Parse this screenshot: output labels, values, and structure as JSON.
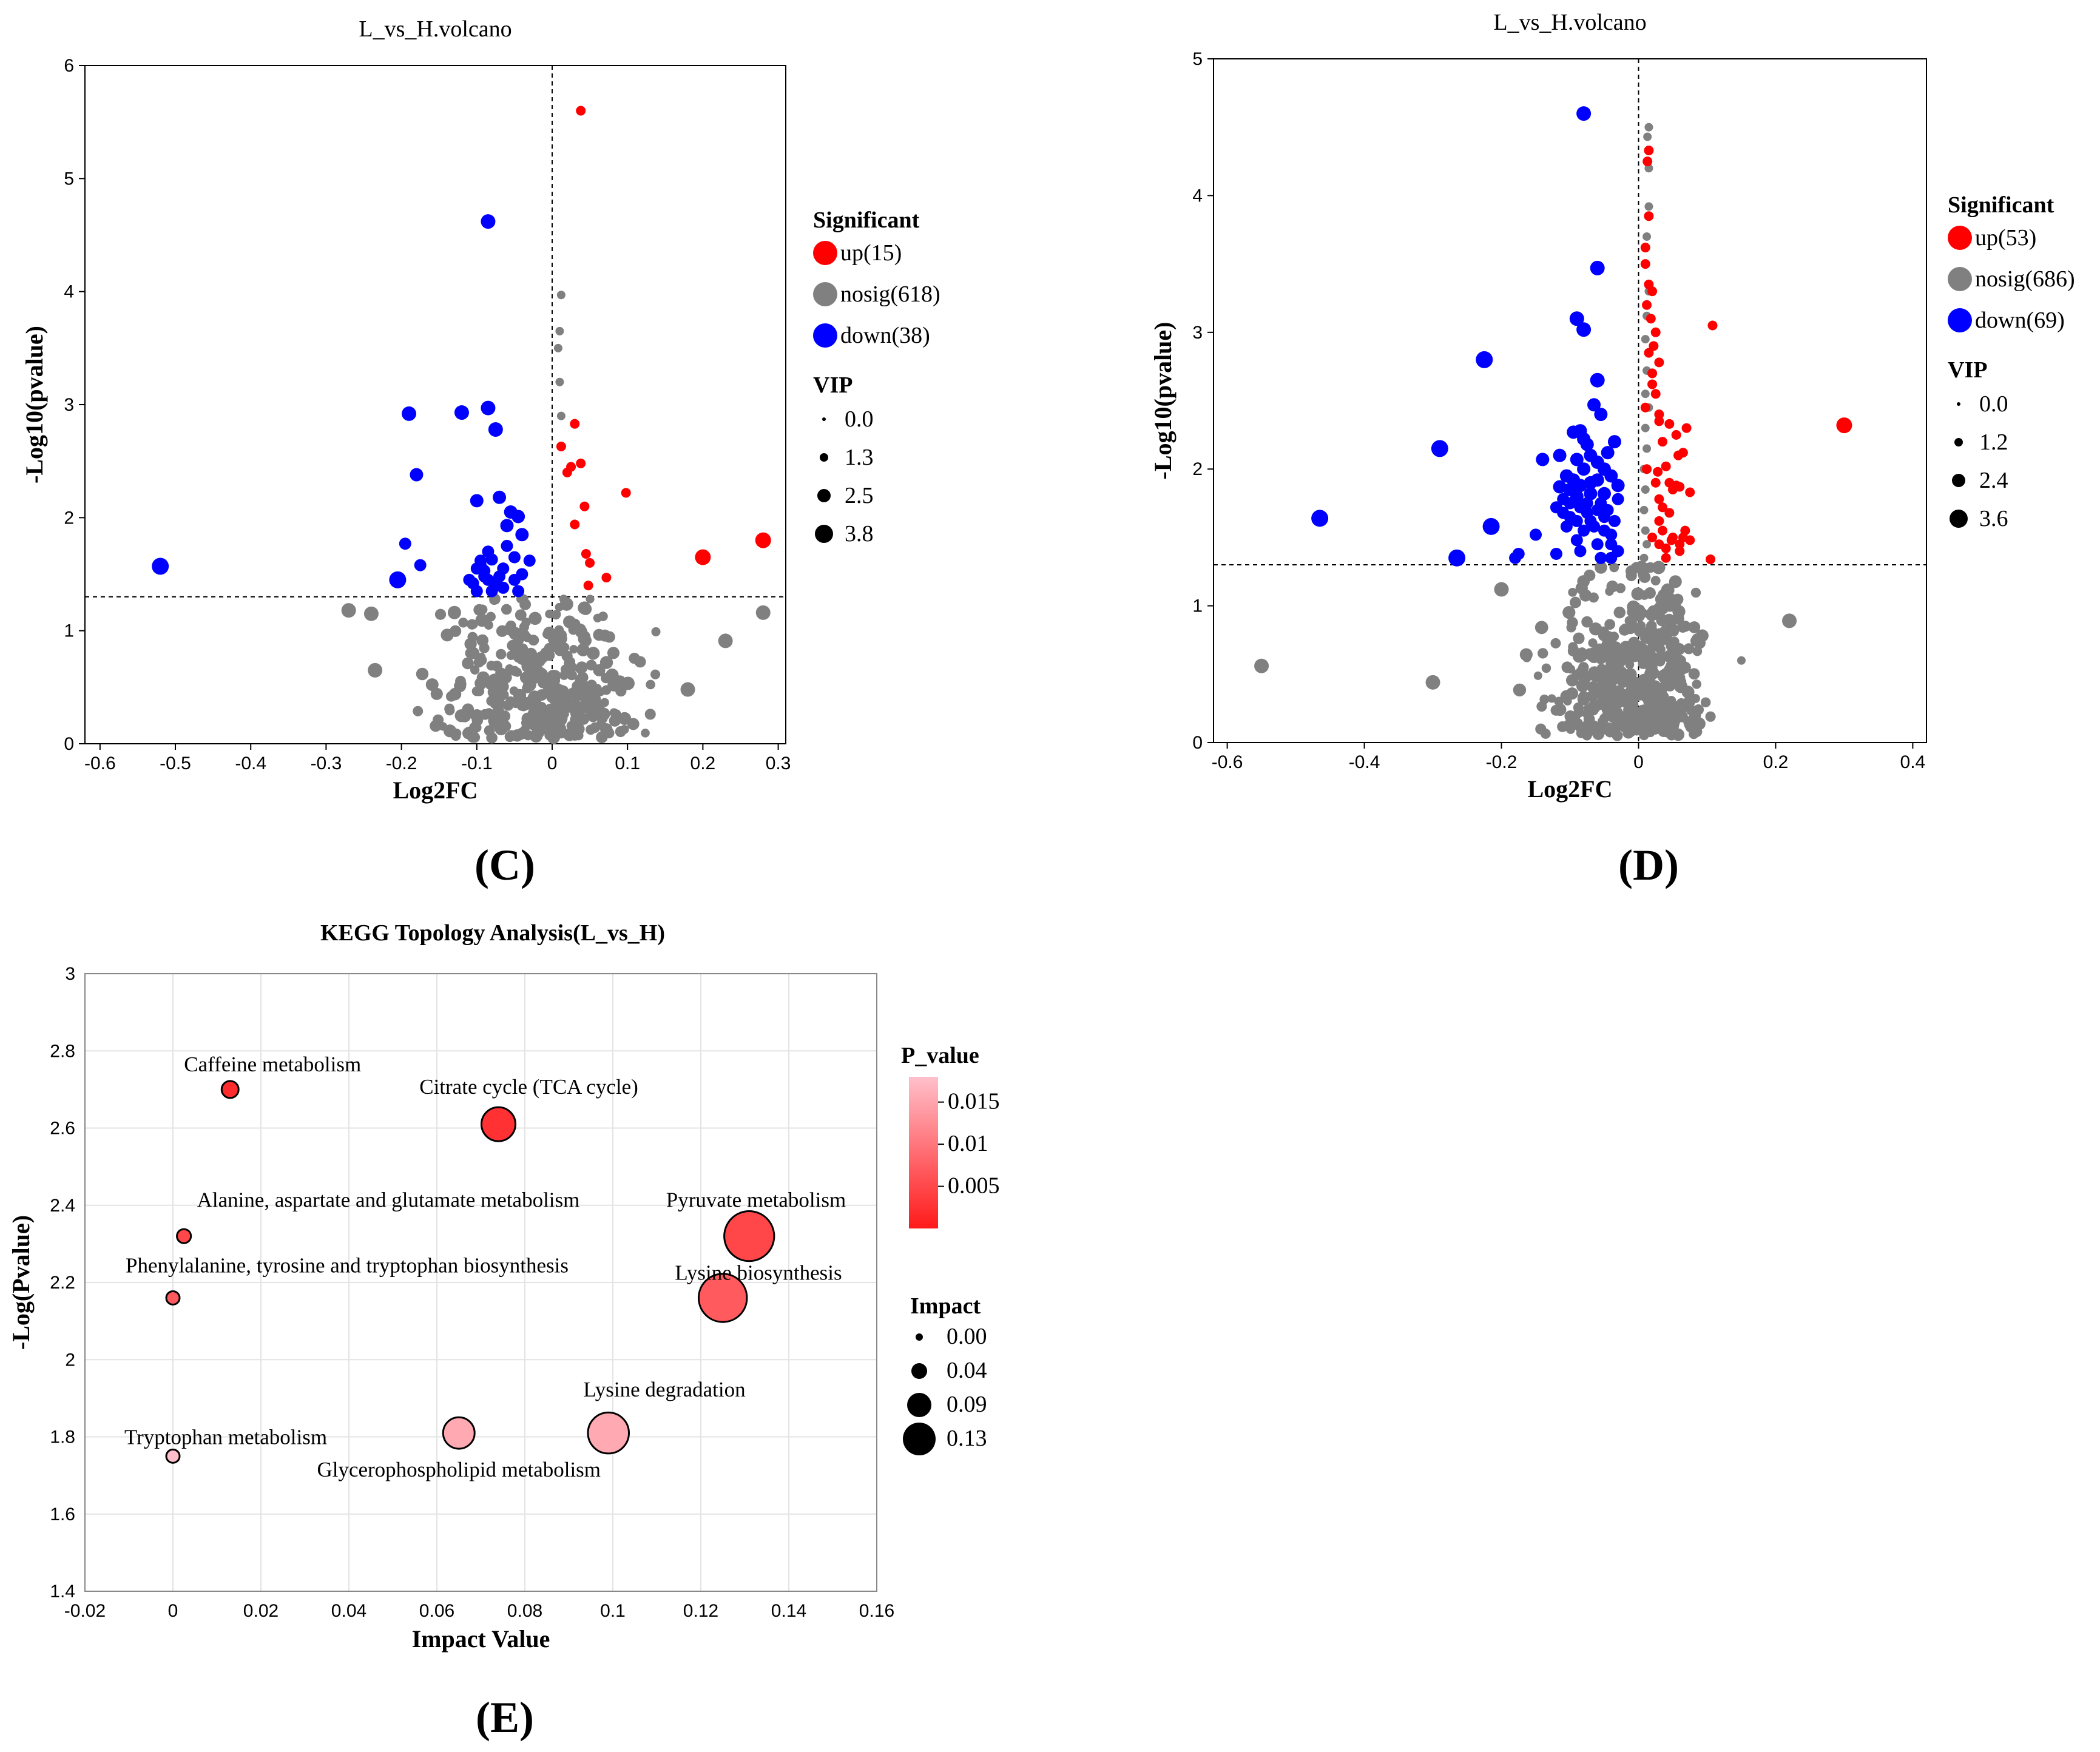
{
  "colors": {
    "up": "#ff0000",
    "nosig": "#808080",
    "down": "#0000ff",
    "pLow": "#ff1a1a",
    "pHigh": "#ffc0cb"
  },
  "panel_labels": [
    "(C)",
    "(D)",
    "(E)"
  ],
  "chart_data": [
    {
      "id": "C",
      "type": "scatter",
      "title": "L_vs_H.volcano",
      "xlabel": "Log2FC",
      "ylabel": "-Log10(pvalue)",
      "xlim": [
        -0.62,
        0.31
      ],
      "ylim": [
        0,
        6
      ],
      "xticks": [
        "-0.6",
        "-0.5",
        "-0.4",
        "-0.3",
        "-0.2",
        "-0.1",
        "0",
        "0.1",
        "0.2",
        "0.3"
      ],
      "xtick_values": [
        -0.6,
        -0.5,
        -0.4,
        -0.3,
        -0.2,
        -0.1,
        0,
        0.1,
        0.2,
        0.3
      ],
      "yticks": [
        "0",
        "1",
        "2",
        "3",
        "4",
        "5",
        "6"
      ],
      "ytick_values": [
        0,
        1,
        2,
        3,
        4,
        5,
        6
      ],
      "threshold_y": 1.3,
      "legend_title": "Significant",
      "legend": [
        {
          "key": "up",
          "label": "up(15)"
        },
        {
          "key": "nosig",
          "label": "nosig(618)"
        },
        {
          "key": "down",
          "label": "down(38)"
        }
      ],
      "vip_title": "VIP",
      "vip": [
        "0.0",
        "1.3",
        "2.5",
        "3.8"
      ],
      "up": [
        [
          0.038,
          5.6
        ],
        [
          0.098,
          2.22
        ],
        [
          0.025,
          2.45
        ],
        [
          0.03,
          2.83
        ],
        [
          0.038,
          2.48
        ],
        [
          0.043,
          2.1
        ],
        [
          0.03,
          1.94
        ],
        [
          0.045,
          1.68
        ],
        [
          0.05,
          1.6
        ],
        [
          0.072,
          1.47
        ],
        [
          0.048,
          1.4
        ],
        [
          0.012,
          2.63
        ],
        [
          0.2,
          1.65
        ],
        [
          0.28,
          1.8
        ],
        [
          0.02,
          2.4
        ]
      ],
      "down": [
        [
          -0.085,
          4.62
        ],
        [
          -0.52,
          1.57
        ],
        [
          -0.19,
          2.92
        ],
        [
          -0.12,
          2.93
        ],
        [
          -0.085,
          2.97
        ],
        [
          -0.075,
          2.78
        ],
        [
          -0.18,
          2.38
        ],
        [
          -0.1,
          2.15
        ],
        [
          -0.07,
          2.18
        ],
        [
          -0.195,
          1.77
        ],
        [
          -0.175,
          1.58
        ],
        [
          -0.205,
          1.45
        ],
        [
          -0.055,
          2.05
        ],
        [
          -0.045,
          2.01
        ],
        [
          -0.06,
          1.93
        ],
        [
          -0.04,
          1.85
        ],
        [
          -0.085,
          1.7
        ],
        [
          -0.095,
          1.62
        ],
        [
          -0.09,
          1.48
        ],
        [
          -0.11,
          1.45
        ],
        [
          -0.06,
          1.75
        ],
        [
          -0.05,
          1.65
        ],
        [
          -0.065,
          1.55
        ],
        [
          -0.04,
          1.5
        ],
        [
          -0.075,
          1.4
        ],
        [
          -0.095,
          1.58
        ],
        [
          -0.1,
          1.55
        ],
        [
          -0.08,
          1.63
        ],
        [
          -0.105,
          1.42
        ],
        [
          -0.07,
          1.48
        ],
        [
          -0.05,
          1.45
        ],
        [
          -0.03,
          1.62
        ],
        [
          -0.065,
          1.38
        ],
        [
          -0.1,
          1.35
        ],
        [
          -0.08,
          1.35
        ],
        [
          -0.085,
          1.45
        ],
        [
          -0.045,
          1.35
        ],
        [
          -0.09,
          1.53
        ]
      ],
      "nosig_extra": [
        [
          0.28,
          1.16
        ],
        [
          0.23,
          0.91
        ],
        [
          0.012,
          3.97
        ],
        [
          0.01,
          3.65
        ],
        [
          0.008,
          3.5
        ],
        [
          0.01,
          3.2
        ],
        [
          0.012,
          2.9
        ],
        [
          -0.27,
          1.18
        ],
        [
          -0.24,
          1.15
        ],
        [
          -0.235,
          0.65
        ],
        [
          0.18,
          0.48
        ]
      ],
      "nosig_cloud": {
        "count": 380,
        "xmin": -0.23,
        "xmax": 0.18,
        "ymax": 1.28,
        "seed": 7
      }
    },
    {
      "id": "D",
      "type": "scatter",
      "title": "L_vs_H.volcano",
      "xlabel": "Log2FC",
      "ylabel": "-Log10(pvalue)",
      "xlim": [
        -0.62,
        0.42
      ],
      "ylim": [
        0,
        5
      ],
      "xticks": [
        "-0.6",
        "-0.4",
        "-0.2",
        "0",
        "0.2",
        "0.4"
      ],
      "xtick_values": [
        -0.6,
        -0.4,
        -0.2,
        0,
        0.2,
        0.4
      ],
      "yticks": [
        "0",
        "1",
        "2",
        "3",
        "4",
        "5"
      ],
      "ytick_values": [
        0,
        1,
        2,
        3,
        4,
        5
      ],
      "threshold_y": 1.3,
      "legend_title": "Significant",
      "legend": [
        {
          "key": "up",
          "label": "up(53)"
        },
        {
          "key": "nosig",
          "label": "nosig(686)"
        },
        {
          "key": "down",
          "label": "down(69)"
        }
      ],
      "vip_title": "VIP",
      "vip": [
        "0.0",
        "1.2",
        "2.4",
        "3.6"
      ],
      "up": [
        [
          0.3,
          2.32
        ],
        [
          0.108,
          3.05
        ],
        [
          0.105,
          1.34
        ],
        [
          0.015,
          4.33
        ],
        [
          0.013,
          4.25
        ],
        [
          0.015,
          3.85
        ],
        [
          0.01,
          3.5
        ],
        [
          0.015,
          3.35
        ],
        [
          0.02,
          3.3
        ],
        [
          0.012,
          3.2
        ],
        [
          0.018,
          3.1
        ],
        [
          0.025,
          3.0
        ],
        [
          0.015,
          2.85
        ],
        [
          0.02,
          2.7
        ],
        [
          0.03,
          2.78
        ],
        [
          0.025,
          2.55
        ],
        [
          0.03,
          2.35
        ],
        [
          0.045,
          2.33
        ],
        [
          0.07,
          2.3
        ],
        [
          0.035,
          2.2
        ],
        [
          0.055,
          2.25
        ],
        [
          0.065,
          2.12
        ],
        [
          0.04,
          2.02
        ],
        [
          0.025,
          1.9
        ],
        [
          0.03,
          1.78
        ],
        [
          0.05,
          1.85
        ],
        [
          0.06,
          1.87
        ],
        [
          0.075,
          1.83
        ],
        [
          0.045,
          1.68
        ],
        [
          0.035,
          1.55
        ],
        [
          0.05,
          1.5
        ],
        [
          0.06,
          1.45
        ],
        [
          0.03,
          1.45
        ],
        [
          0.04,
          1.42
        ],
        [
          0.06,
          1.4
        ],
        [
          0.02,
          1.5
        ],
        [
          0.04,
          1.35
        ],
        [
          0.048,
          1.48
        ],
        [
          0.055,
          1.88
        ],
        [
          0.035,
          1.72
        ],
        [
          0.028,
          1.98
        ],
        [
          0.065,
          1.5
        ],
        [
          0.01,
          2.45
        ],
        [
          0.012,
          2.0
        ],
        [
          0.02,
          2.62
        ],
        [
          0.01,
          3.62
        ],
        [
          0.022,
          2.9
        ],
        [
          0.03,
          2.4
        ],
        [
          0.058,
          2.1
        ],
        [
          0.075,
          1.48
        ],
        [
          0.068,
          1.55
        ],
        [
          0.045,
          1.9
        ],
        [
          0.03,
          1.62
        ]
      ],
      "down": [
        [
          -0.08,
          4.6
        ],
        [
          -0.06,
          3.47
        ],
        [
          -0.09,
          3.1
        ],
        [
          -0.08,
          3.02
        ],
        [
          -0.225,
          2.8
        ],
        [
          -0.06,
          2.65
        ],
        [
          -0.065,
          2.47
        ],
        [
          -0.055,
          2.4
        ],
        [
          -0.29,
          2.15
        ],
        [
          -0.465,
          1.64
        ],
        [
          -0.095,
          2.27
        ],
        [
          -0.085,
          2.28
        ],
        [
          -0.035,
          2.2
        ],
        [
          -0.075,
          2.18
        ],
        [
          -0.14,
          2.07
        ],
        [
          -0.115,
          2.1
        ],
        [
          -0.09,
          2.07
        ],
        [
          -0.06,
          2.05
        ],
        [
          -0.08,
          2.0
        ],
        [
          -0.04,
          1.95
        ],
        [
          -0.1,
          1.85
        ],
        [
          -0.09,
          1.8
        ],
        [
          -0.07,
          1.82
        ],
        [
          -0.05,
          1.82
        ],
        [
          -0.11,
          1.78
        ],
        [
          -0.085,
          1.72
        ],
        [
          -0.06,
          1.7
        ],
        [
          -0.1,
          1.65
        ],
        [
          -0.07,
          1.62
        ],
        [
          -0.045,
          1.7
        ],
        [
          -0.03,
          1.78
        ],
        [
          -0.035,
          1.62
        ],
        [
          -0.11,
          1.68
        ],
        [
          -0.08,
          1.55
        ],
        [
          -0.05,
          1.55
        ],
        [
          -0.105,
          1.58
        ],
        [
          -0.09,
          1.48
        ],
        [
          -0.06,
          1.45
        ],
        [
          -0.04,
          1.45
        ],
        [
          -0.215,
          1.58
        ],
        [
          -0.15,
          1.52
        ],
        [
          -0.175,
          1.38
        ],
        [
          -0.18,
          1.35
        ],
        [
          -0.265,
          1.35
        ],
        [
          -0.12,
          1.38
        ],
        [
          -0.03,
          1.4
        ],
        [
          -0.055,
          1.35
        ],
        [
          -0.085,
          1.4
        ],
        [
          -0.04,
          1.35
        ],
        [
          -0.07,
          1.9
        ],
        [
          -0.095,
          1.92
        ],
        [
          -0.075,
          1.75
        ],
        [
          -0.055,
          1.75
        ],
        [
          -0.12,
          1.72
        ],
        [
          -0.04,
          1.52
        ],
        [
          -0.065,
          1.58
        ],
        [
          -0.09,
          1.62
        ],
        [
          -0.1,
          1.75
        ],
        [
          -0.115,
          1.87
        ],
        [
          -0.03,
          1.88
        ],
        [
          -0.045,
          2.12
        ],
        [
          -0.075,
          1.68
        ],
        [
          -0.085,
          1.88
        ],
        [
          -0.05,
          1.65
        ],
        [
          -0.07,
          2.1
        ],
        [
          -0.08,
          2.22
        ],
        [
          -0.06,
          1.92
        ],
        [
          -0.105,
          1.95
        ],
        [
          -0.05,
          2.0
        ]
      ],
      "nosig_extra": [
        [
          -0.55,
          0.56
        ],
        [
          -0.3,
          0.44
        ],
        [
          0.22,
          0.89
        ],
        [
          0.15,
          0.6
        ],
        [
          0.015,
          4.5
        ],
        [
          0.013,
          4.43
        ],
        [
          0.015,
          4.2
        ],
        [
          0.015,
          3.92
        ],
        [
          0.012,
          3.7
        ],
        [
          0.015,
          3.3
        ],
        [
          0.012,
          3.12
        ],
        [
          0.01,
          2.95
        ],
        [
          0.012,
          2.72
        ],
        [
          0.01,
          2.55
        ],
        [
          0.015,
          2.45
        ],
        [
          0.01,
          2.3
        ],
        [
          0.012,
          2.15
        ],
        [
          0.008,
          2.0
        ],
        [
          0.01,
          1.85
        ],
        [
          0.008,
          1.7
        ],
        [
          0.01,
          1.55
        ],
        [
          0.012,
          1.45
        ],
        [
          0.008,
          1.35
        ],
        [
          -0.2,
          1.12
        ]
      ],
      "nosig_cloud": {
        "count": 460,
        "xmin": -0.2,
        "xmax": 0.14,
        "ymax": 1.28,
        "seed": 11
      }
    },
    {
      "id": "E",
      "type": "bubble",
      "title": "KEGG Topology Analysis(L_vs_H)",
      "xlabel": "Impact Value",
      "ylabel": "-Log(Pvalue)",
      "xlim": [
        -0.02,
        0.16
      ],
      "ylim": [
        1.4,
        3
      ],
      "xticks": [
        "-0.02",
        "0",
        "0.02",
        "0.04",
        "0.06",
        "0.08",
        "0.1",
        "0.12",
        "0.14",
        "0.16"
      ],
      "xtick_values": [
        -0.02,
        0,
        0.02,
        0.04,
        0.06,
        0.08,
        0.1,
        0.12,
        0.14,
        0.16
      ],
      "yticks": [
        "1.4",
        "1.6",
        "1.8",
        "2",
        "2.2",
        "2.4",
        "2.6",
        "2.8",
        "3"
      ],
      "ytick_values": [
        1.4,
        1.6,
        1.8,
        2,
        2.2,
        2.4,
        2.6,
        2.8,
        3
      ],
      "colorbar_title": "P_value",
      "colorbar_ticks": [
        "0.015",
        "0.01",
        "0.005"
      ],
      "colorbar_tick_values": [
        0.015,
        0.01,
        0.005
      ],
      "colorbar_range": [
        0.0,
        0.018
      ],
      "impact_title": "Impact",
      "impact_legend": [
        "0.00",
        "0.04",
        "0.09",
        "0.13"
      ],
      "impact_legend_values": [
        0.0,
        0.04,
        0.09,
        0.13
      ],
      "points": [
        {
          "label": "Caffeine metabolism",
          "impact": 0.013,
          "logp": 2.7,
          "pvalue": 0.002,
          "anchor": "above"
        },
        {
          "label": "Citrate cycle (TCA cycle)",
          "impact": 0.074,
          "logp": 2.61,
          "pvalue": 0.0025,
          "anchor": "above"
        },
        {
          "label": "Alanine, aspartate and glutamate metabolism",
          "impact": 0.0025,
          "logp": 2.32,
          "pvalue": 0.0048,
          "anchor": "above"
        },
        {
          "label": "Pyruvate metabolism",
          "impact": 0.131,
          "logp": 2.32,
          "pvalue": 0.0048,
          "anchor": "above"
        },
        {
          "label": "Phenylalanine, tyrosine and tryptophan biosynthesis",
          "impact": 0.0,
          "logp": 2.16,
          "pvalue": 0.0069,
          "anchor": "above"
        },
        {
          "label": "Lysine biosynthesis",
          "impact": 0.125,
          "logp": 2.16,
          "pvalue": 0.0069,
          "anchor": "above"
        },
        {
          "label": "Lysine degradation",
          "impact": 0.099,
          "logp": 1.81,
          "pvalue": 0.0155,
          "anchor": "above"
        },
        {
          "label": "Glycerophospholipid metabolism",
          "impact": 0.065,
          "logp": 1.81,
          "pvalue": 0.0155,
          "anchor": "below"
        },
        {
          "label": "Tryptophan metabolism",
          "impact": 0.0,
          "logp": 1.75,
          "pvalue": 0.0178,
          "anchor": "above"
        }
      ]
    }
  ]
}
